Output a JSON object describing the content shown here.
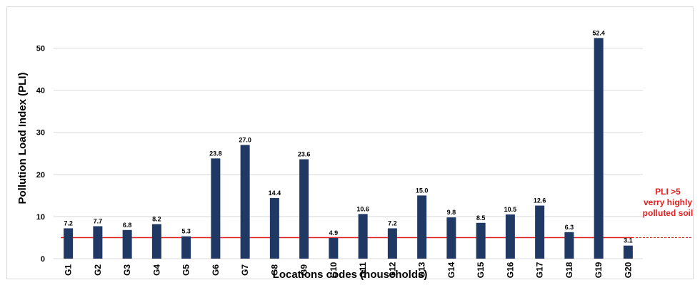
{
  "chart_data": {
    "type": "bar",
    "categories": [
      "G1",
      "G2",
      "G3",
      "G4",
      "G5",
      "G6",
      "G7",
      "G8",
      "G9",
      "G10",
      "G11",
      "G12",
      "G13",
      "G14",
      "G15",
      "G16",
      "G17",
      "G18",
      "G19",
      "G20"
    ],
    "values": [
      7.2,
      7.7,
      6.8,
      8.2,
      5.3,
      23.8,
      27.0,
      14.4,
      23.6,
      4.9,
      10.6,
      7.2,
      15.0,
      9.8,
      8.5,
      10.5,
      12.6,
      6.3,
      52.4,
      3.1
    ],
    "value_labels": [
      "7.2",
      "7.7",
      "6.8",
      "8.2",
      "5.3",
      "23.8",
      "27.0",
      "14.4",
      "23.6",
      "4.9",
      "10.6",
      "7.2",
      "15.0",
      "9.8",
      "8.5",
      "10.5",
      "12.6",
      "6.3",
      "52.4",
      "3.1"
    ],
    "xlabel": "Locations codes (households)",
    "ylabel": "Pollution Load Index  (PLI)",
    "ylim": [
      0,
      55
    ],
    "yticks": [
      0,
      10,
      20,
      30,
      40,
      50
    ],
    "grid": true,
    "threshold": {
      "value": 5,
      "label_lines": [
        "PLI >5",
        "verry highly",
        "polluted soil"
      ]
    },
    "colors": {
      "bar": "#1f3864",
      "threshold": "#e02020",
      "grid": "#d9d9d9"
    }
  }
}
